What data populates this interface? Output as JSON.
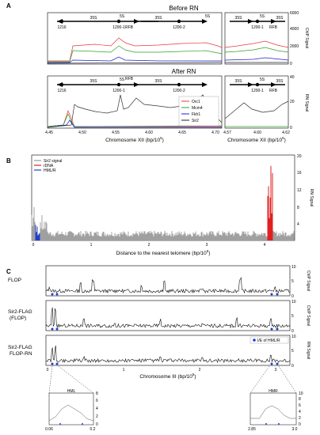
{
  "panels": {
    "A": {
      "label": "A",
      "before_title": "Before RN",
      "after_title": "After RN",
      "left_ticks_x": [
        "4.45",
        "4.50",
        "4.55",
        "4.60",
        "4.65",
        "4.70"
      ],
      "right_ticks_x": [
        "4.57",
        "4.60",
        "4.62"
      ],
      "left_xlabel": "Chromosome XII (bp/10",
      "right_xlabel": "Chromosome XII (bp/10",
      "xlabel_sup": "5",
      "xlabel_close": ")",
      "before_ticks_y": [
        "0",
        "2000",
        "4000",
        "6000"
      ],
      "after_ticks_y": [
        "0",
        "20",
        "40"
      ],
      "before_ylabel": "ChIP Signal",
      "after_ylabel": "RN Signal",
      "legend": [
        "Orc1",
        "Mcm4",
        "Fkh1",
        "Sir2"
      ],
      "legend_colors": [
        "#e8383d",
        "#2ca02c",
        "#1f1fd0",
        "#222222"
      ],
      "schematic_left": [
        "35S",
        "35S",
        "5S",
        "1216",
        "1200-1",
        "RFB",
        "1200-2",
        "5S"
      ],
      "schematic_right": [
        "35S",
        "5S",
        "35S",
        "1200-1",
        "RFB"
      ]
    },
    "B": {
      "label": "B",
      "legend": [
        "Sir2 signal",
        "rDNA",
        "HML/R"
      ],
      "legend_colors": [
        "#9a9a9a",
        "#e02020",
        "#1f3fd0"
      ],
      "ticks_x": [
        "0",
        "1",
        "2",
        "3",
        "4"
      ],
      "ticks_y": [
        "4",
        "8",
        "12",
        "16",
        "20"
      ],
      "xlabel": "Distance to the nearest telomere (bp/10",
      "xlabel_sup": "5",
      "xlabel_close": ")",
      "ylabel": "RN Signal"
    },
    "C": {
      "label": "C",
      "track_labels": [
        [
          "FLOP"
        ],
        [
          "Sir2-FLAG",
          "(FLOP)"
        ],
        [
          "Sir2-FLAG",
          "FLOP-RN"
        ]
      ],
      "ylabels": [
        "ChIP Signal",
        "ChIP Signal",
        "RN Signal"
      ],
      "ticks_y": [
        "0",
        "5",
        "10"
      ],
      "ticks_x": [
        "0",
        "1",
        "2",
        "3"
      ],
      "xlabel": "Chromosome III (bp/10",
      "xlabel_sup": "5",
      "xlabel_close": ")",
      "legend": "I/E of HML/R",
      "inset_hml": {
        "title": "HML",
        "ticks_x": [
          "0.06",
          "0.2"
        ],
        "ticks_y": [
          "0",
          "2",
          "4",
          "6",
          "8"
        ]
      },
      "inset_hmr": {
        "title": "HMR",
        "ticks_x": [
          "2.85",
          "3.0"
        ],
        "ticks_y": [
          "0",
          "2",
          "4",
          "6",
          "8",
          "10"
        ]
      }
    }
  },
  "chart_data": [
    {
      "type": "line",
      "title": "Before RN",
      "ylabel": "ChIP Signal",
      "xlabel": "Chromosome XII (bp/10^5)",
      "xlim": [
        4.45,
        4.72
      ],
      "ylim": [
        0,
        6000
      ],
      "series": [
        {
          "name": "Orc1",
          "x": [
            4.45,
            4.51,
            4.52,
            4.55,
            4.58,
            4.59,
            4.6,
            4.62,
            4.65,
            4.68,
            4.7
          ],
          "y": [
            300,
            400,
            1850,
            1800,
            2800,
            2600,
            1900,
            1950,
            2050,
            2150,
            1750
          ]
        },
        {
          "name": "Mcm4",
          "x": [
            4.45,
            4.51,
            4.52,
            4.55,
            4.58,
            4.59,
            4.6,
            4.62,
            4.65,
            4.68,
            4.7
          ],
          "y": [
            250,
            350,
            1300,
            1200,
            2000,
            1800,
            1350,
            1250,
            1300,
            1350,
            1150
          ]
        },
        {
          "name": "Fkh1",
          "x": [
            4.45,
            4.51,
            4.52,
            4.55,
            4.58,
            4.59,
            4.6,
            4.65,
            4.7
          ],
          "y": [
            100,
            100,
            300,
            250,
            700,
            350,
            250,
            250,
            200
          ]
        },
        {
          "name": "Sir2",
          "x": [
            4.45,
            4.51,
            4.52,
            4.55,
            4.58,
            4.59,
            4.6,
            4.65,
            4.7
          ],
          "y": [
            50,
            50,
            100,
            100,
            150,
            100,
            100,
            100,
            100
          ]
        }
      ]
    },
    {
      "type": "line",
      "title": "After RN",
      "ylabel": "RN Signal",
      "xlabel": "Chromosome XII (bp/10^5)",
      "xlim": [
        4.45,
        4.72
      ],
      "ylim": [
        0,
        40
      ],
      "series": [
        {
          "name": "Orc1",
          "x": [
            4.45,
            4.49,
            4.5,
            4.51,
            4.55,
            4.6,
            4.65,
            4.7
          ],
          "y": [
            1,
            12,
            20,
            2,
            1,
            1,
            1,
            1
          ]
        },
        {
          "name": "Mcm4",
          "x": [
            4.45,
            4.49,
            4.5,
            4.51,
            4.55,
            4.6,
            4.65,
            4.7
          ],
          "y": [
            1,
            10,
            15,
            2,
            1,
            1,
            1,
            1
          ]
        },
        {
          "name": "Fkh1",
          "x": [
            4.45,
            4.49,
            4.5,
            4.51,
            4.55,
            4.6,
            4.65,
            4.7
          ],
          "y": [
            1,
            8,
            10,
            1,
            1,
            1,
            1,
            1
          ]
        },
        {
          "name": "Sir2",
          "x": [
            4.45,
            4.5,
            4.51,
            4.52,
            4.55,
            4.58,
            4.59,
            4.6,
            4.62,
            4.65,
            4.68,
            4.7
          ],
          "y": [
            1,
            3,
            22,
            24,
            20,
            30,
            15,
            20,
            22,
            20,
            26,
            15
          ]
        }
      ]
    },
    {
      "type": "bar",
      "ylabel": "RN Signal",
      "xlabel": "Distance to the nearest telomere (bp/10^5)",
      "xlim": [
        0,
        4.8
      ],
      "ylim": [
        0,
        20
      ],
      "series": [
        {
          "name": "Sir2 signal",
          "x_range": [
            0,
            4.8
          ],
          "typical_y": 1.5,
          "peak_y": 8
        },
        {
          "name": "rDNA",
          "x_range": [
            4.3,
            4.4
          ],
          "peak_y": 18
        },
        {
          "name": "HML/R",
          "x_range": [
            0.06,
            0.15
          ],
          "peak_y": 5
        }
      ]
    },
    {
      "type": "line",
      "title": "FLOP",
      "ylabel": "ChIP Signal",
      "xlabel": "Chromosome III (bp/10^5)",
      "xlim": [
        0,
        3.2
      ],
      "ylim": [
        0,
        10
      ],
      "series": [
        {
          "name": "FLOP",
          "x": [
            0.05,
            0.45,
            0.62,
            0.95,
            1.25,
            1.55,
            2.05,
            2.55,
            3.0
          ],
          "y": [
            3,
            5,
            6,
            2,
            4,
            5,
            3,
            6,
            3
          ]
        }
      ]
    },
    {
      "type": "line",
      "title": "Sir2-FLAG (FLOP)",
      "ylabel": "ChIP Signal",
      "xlabel": "Chromosome III (bp/10^5)",
      "xlim": [
        0,
        3.2
      ],
      "ylim": [
        0,
        10
      ],
      "series": [
        {
          "name": "Sir2-FLAG (FLOP)",
          "x": [
            0.08,
            0.12,
            0.5,
            0.9,
            1.5,
            2.05,
            2.5,
            2.95
          ],
          "y": [
            8,
            9,
            5,
            3,
            4,
            3,
            5,
            4
          ]
        }
      ]
    },
    {
      "type": "line",
      "title": "Sir2-FLAG FLOP-RN",
      "ylabel": "RN Signal",
      "xlabel": "Chromosome III (bp/10^5)",
      "xlim": [
        0,
        3.2
      ],
      "ylim": [
        0,
        10
      ],
      "series": [
        {
          "name": "Sir2-FLAG FLOP-RN",
          "x": [
            0.08,
            0.12,
            0.5,
            1.0,
            1.5,
            2.05,
            2.5,
            2.95
          ],
          "y": [
            6,
            7,
            3,
            2,
            3,
            3,
            2,
            4
          ]
        }
      ]
    },
    {
      "type": "line",
      "title": "HML",
      "xlim": [
        0.06,
        0.2
      ],
      "ylim": [
        0,
        8
      ],
      "series": [
        {
          "name": "HML",
          "x": [
            0.06,
            0.08,
            0.1,
            0.12,
            0.14,
            0.16,
            0.18,
            0.2
          ],
          "y": [
            1,
            2,
            4,
            5,
            4,
            3,
            1.5,
            1
          ]
        }
      ]
    },
    {
      "type": "line",
      "title": "HMR",
      "xlim": [
        2.85,
        3.0
      ],
      "ylim": [
        0,
        10
      ],
      "series": [
        {
          "name": "HMR",
          "x": [
            2.85,
            2.88,
            2.9,
            2.92,
            2.94,
            2.96,
            2.98,
            3.0
          ],
          "y": [
            2,
            2,
            5,
            6,
            5,
            3,
            2,
            2
          ]
        }
      ]
    }
  ]
}
